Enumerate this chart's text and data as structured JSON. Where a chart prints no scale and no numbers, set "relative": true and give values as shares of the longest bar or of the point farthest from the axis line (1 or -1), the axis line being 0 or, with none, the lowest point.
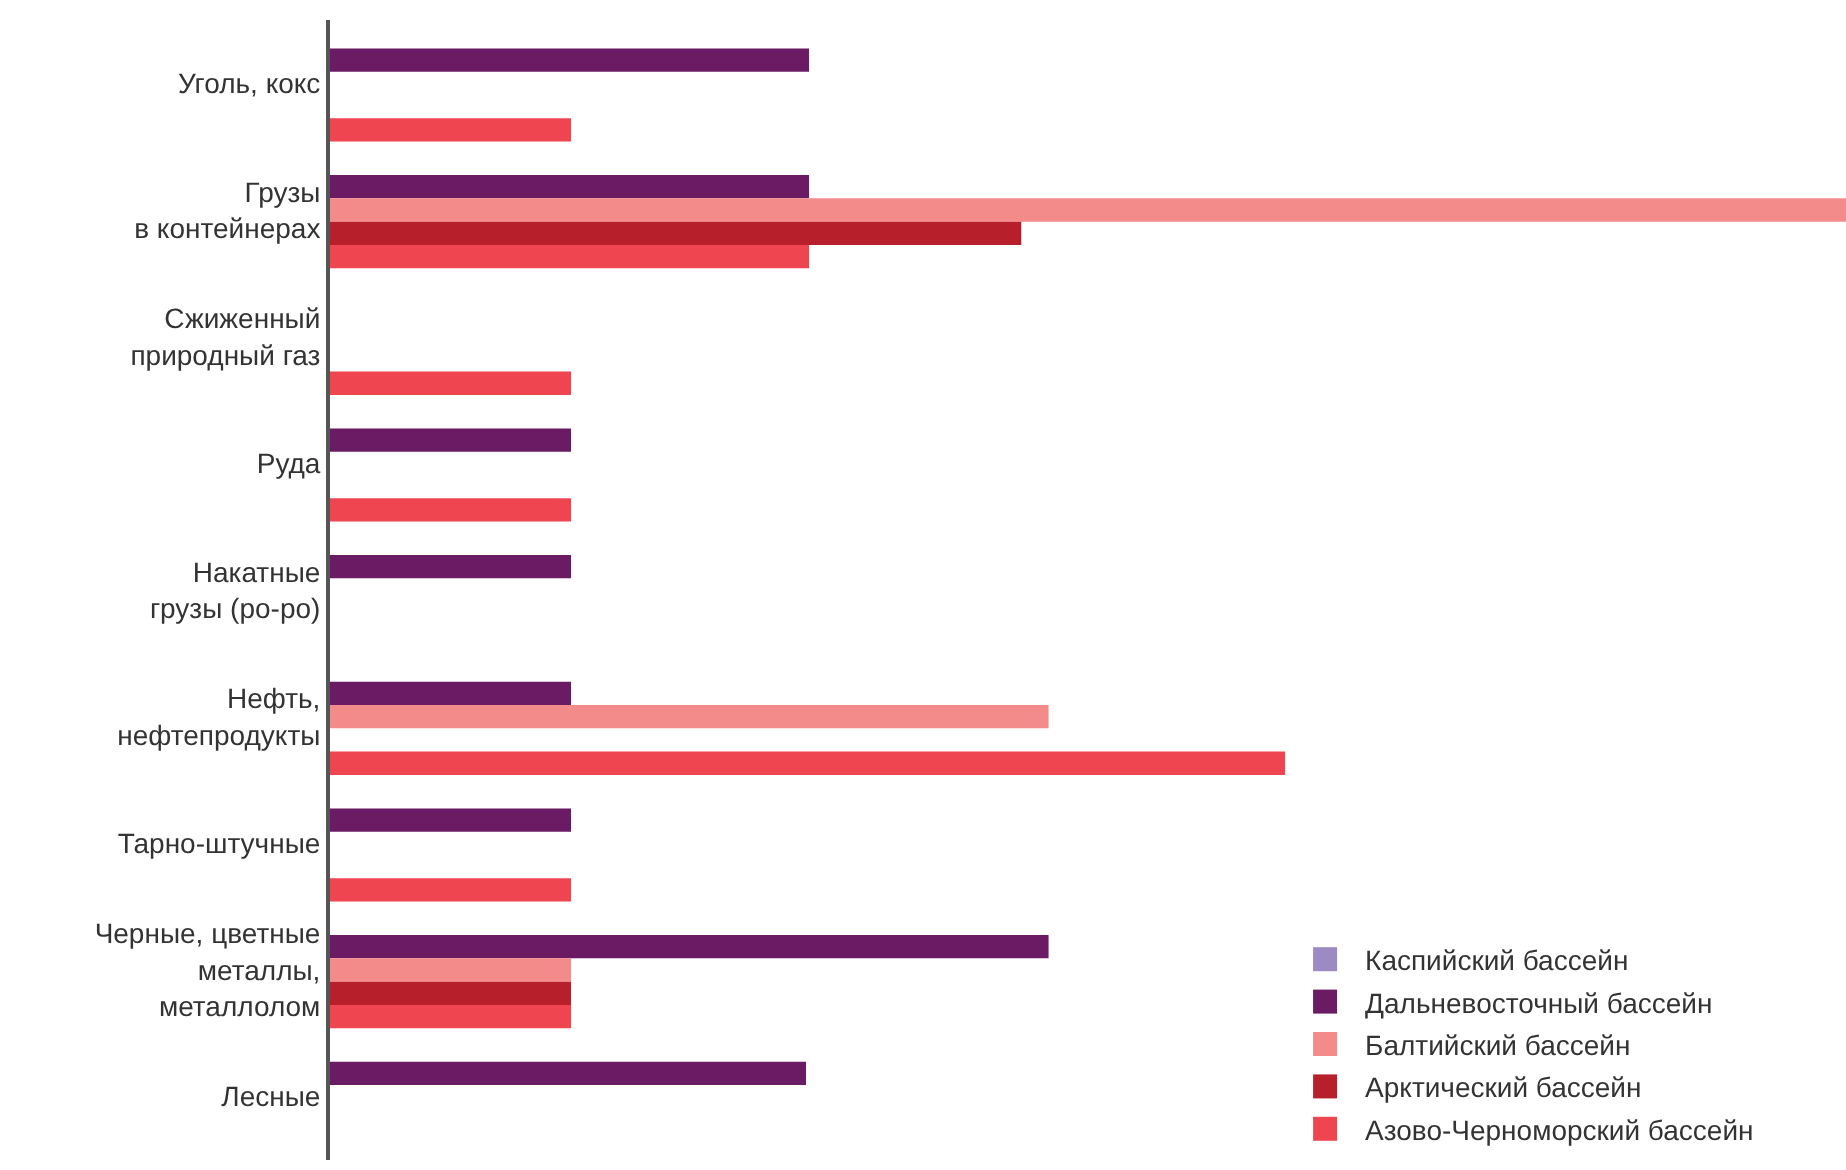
{
  "chart_data": {
    "type": "bar",
    "orientation": "horizontal",
    "relative": true,
    "legend": "bottom right",
    "grid": false,
    "categories": [
      "Уголь, кокс",
      "Грузы\nв контейнерах",
      "Сжиженный\nприродный газ",
      "Руда",
      "Накатные\nгрузы (ро-ро)",
      "Нефть,\nнефтепродукты",
      "Тарно-штучные",
      "Черные, цветные\nметаллы,\nметаллолом",
      "Лесные"
    ],
    "series": [
      {
        "name": "Каспийский бассейн",
        "color": "#9b8ac4",
        "values": [
          null,
          null,
          null,
          null,
          null,
          null,
          null,
          null,
          null
        ]
      },
      {
        "name": "Дальневосточный бассейн",
        "color": "#6a1b63",
        "values": [
          0.316,
          0.316,
          null,
          0.159,
          0.159,
          0.159,
          0.159,
          0.474,
          0.314
        ]
      },
      {
        "name": "Балтийский бассейн",
        "color": "#f48b8b",
        "values": [
          null,
          1,
          null,
          null,
          null,
          0.474,
          null,
          0.159,
          null
        ]
      },
      {
        "name": "Арктический бассейн",
        "color": "#b71f2a",
        "values": [
          null,
          0.456,
          null,
          null,
          null,
          null,
          null,
          0.159,
          null
        ]
      },
      {
        "name": "Азово-Черноморский бассейн",
        "color": "#ef4550",
        "values": [
          0.159,
          0.316,
          0.159,
          0.159,
          null,
          0.63,
          0.159,
          0.159,
          null
        ]
      }
    ]
  }
}
